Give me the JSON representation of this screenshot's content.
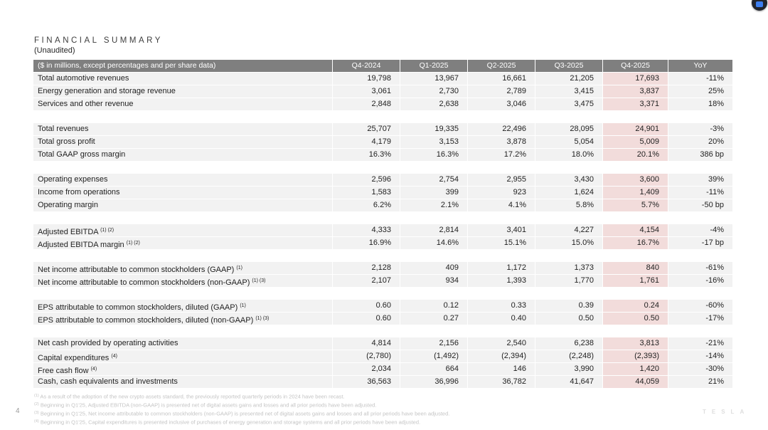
{
  "page": {
    "number": "4",
    "brand_watermark": "TESLA"
  },
  "header": {
    "title": "FINANCIAL SUMMARY",
    "subtitle": "(Unaudited)"
  },
  "colors": {
    "header_bg": "#7f7f7f",
    "header_text": "#ffffff",
    "row_bg": "#f2f2f2",
    "highlight_bg": "#f2dcdb",
    "footnote_text": "#c4c4c4"
  },
  "table": {
    "label_header": "($ in millions, except percentages and per share data)",
    "columns": [
      "Q4-2024",
      "Q1-2025",
      "Q2-2025",
      "Q3-2025",
      "Q4-2025",
      "YoY"
    ],
    "highlight_column": "Q4-2025",
    "rows": [
      {
        "label": "Total automotive revenues",
        "sup": "",
        "values": [
          "19,798",
          "13,967",
          "16,661",
          "21,205",
          "17,693",
          "-11%"
        ]
      },
      {
        "label": "Energy generation and storage revenue",
        "sup": "",
        "values": [
          "3,061",
          "2,730",
          "2,789",
          "3,415",
          "3,837",
          "25%"
        ]
      },
      {
        "label": "Services and other revenue",
        "sup": "",
        "values": [
          "2,848",
          "2,638",
          "3,046",
          "3,475",
          "3,371",
          "18%"
        ]
      },
      {
        "spacer": true
      },
      {
        "label": "Total revenues",
        "sup": "",
        "values": [
          "25,707",
          "19,335",
          "22,496",
          "28,095",
          "24,901",
          "-3%"
        ]
      },
      {
        "label": "Total gross profit",
        "sup": "",
        "values": [
          "4,179",
          "3,153",
          "3,878",
          "5,054",
          "5,009",
          "20%"
        ]
      },
      {
        "label": "Total GAAP gross margin",
        "sup": "",
        "values": [
          "16.3%",
          "16.3%",
          "17.2%",
          "18.0%",
          "20.1%",
          "386 bp"
        ]
      },
      {
        "spacer": true
      },
      {
        "label": "Operating expenses",
        "sup": "",
        "values": [
          "2,596",
          "2,754",
          "2,955",
          "3,430",
          "3,600",
          "39%"
        ]
      },
      {
        "label": "Income from operations",
        "sup": "",
        "values": [
          "1,583",
          "399",
          "923",
          "1,624",
          "1,409",
          "-11%"
        ]
      },
      {
        "label": "Operating margin",
        "sup": "",
        "values": [
          "6.2%",
          "2.1%",
          "4.1%",
          "5.8%",
          "5.7%",
          "-50 bp"
        ]
      },
      {
        "spacer": true
      },
      {
        "label": "Adjusted EBITDA",
        "sup": "(1) (2)",
        "values": [
          "4,333",
          "2,814",
          "3,401",
          "4,227",
          "4,154",
          "-4%"
        ]
      },
      {
        "label": "Adjusted EBITDA margin",
        "sup": "(1) (2)",
        "values": [
          "16.9%",
          "14.6%",
          "15.1%",
          "15.0%",
          "16.7%",
          "-17 bp"
        ]
      },
      {
        "spacer": true
      },
      {
        "label": "Net income attributable to common stockholders (GAAP)",
        "sup": "(1)",
        "values": [
          "2,128",
          "409",
          "1,172",
          "1,373",
          "840",
          "-61%"
        ]
      },
      {
        "label": "Net income attributable to common stockholders (non-GAAP)",
        "sup": "(1) (3)",
        "values": [
          "2,107",
          "934",
          "1,393",
          "1,770",
          "1,761",
          "-16%"
        ]
      },
      {
        "spacer": true
      },
      {
        "label": "EPS attributable to common stockholders, diluted (GAAP)",
        "sup": "(1)",
        "values": [
          "0.60",
          "0.12",
          "0.33",
          "0.39",
          "0.24",
          "-60%"
        ]
      },
      {
        "label": "EPS attributable to common stockholders, diluted (non-GAAP)",
        "sup": "(1) (3)",
        "values": [
          "0.60",
          "0.27",
          "0.40",
          "0.50",
          "0.50",
          "-17%"
        ]
      },
      {
        "spacer": true
      },
      {
        "label": "Net cash provided by operating activities",
        "sup": "",
        "values": [
          "4,814",
          "2,156",
          "2,540",
          "6,238",
          "3,813",
          "-21%"
        ]
      },
      {
        "label": "Capital expenditures",
        "sup": "(4)",
        "values": [
          "(2,780)",
          "(1,492)",
          "(2,394)",
          "(2,248)",
          "(2,393)",
          "-14%"
        ]
      },
      {
        "label": "Free cash flow",
        "sup": "(4)",
        "values": [
          "2,034",
          "664",
          "146",
          "3,990",
          "1,420",
          "-30%"
        ]
      },
      {
        "label": "Cash, cash equivalents and investments",
        "sup": "",
        "values": [
          "36,563",
          "36,996",
          "36,782",
          "41,647",
          "44,059",
          "21%"
        ]
      }
    ]
  },
  "footnotes": [
    {
      "sup": "(1)",
      "text": "As a result of the adoption of the new crypto assets standard, the previously reported quarterly periods in 2024 have been recast."
    },
    {
      "sup": "(2)",
      "text": "Beginning in Q1'25, Adjusted EBITDA (non-GAAP) is presented net of digital assets gains and losses and all prior periods have been adjusted."
    },
    {
      "sup": "(3)",
      "text": "Beginning in Q1'25, Net income attributable to common stockholders (non-GAAP) is presented net of digital assets gains and losses and all prior periods have been adjusted."
    },
    {
      "sup": "(4)",
      "text": "Beginning in Q1'25, Capital expenditures is presented inclusive of purchases of energy generation and storage systems and all prior periods have been adjusted."
    }
  ]
}
